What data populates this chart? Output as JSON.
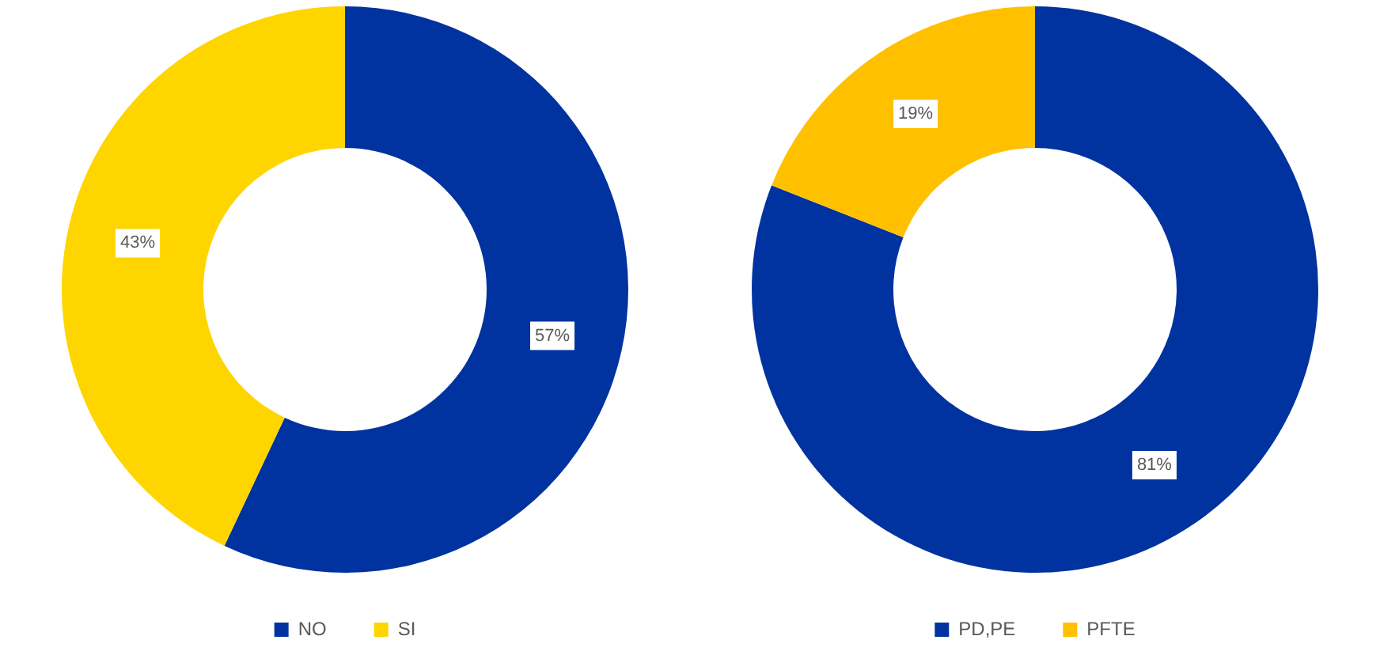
{
  "chart_data": [
    {
      "type": "donut",
      "categories": [
        "NO",
        "SI"
      ],
      "values": [
        57,
        43
      ],
      "colors": [
        "#0033a0",
        "#ffd500"
      ],
      "value_labels": [
        "57%",
        "43%"
      ],
      "legend": "bottom"
    },
    {
      "type": "donut",
      "categories": [
        "PD,PE",
        "PFTE"
      ],
      "values": [
        81,
        19
      ],
      "colors": [
        "#0033a0",
        "#ffc000"
      ],
      "value_labels": [
        "81%",
        "19%"
      ],
      "legend": "bottom"
    }
  ]
}
